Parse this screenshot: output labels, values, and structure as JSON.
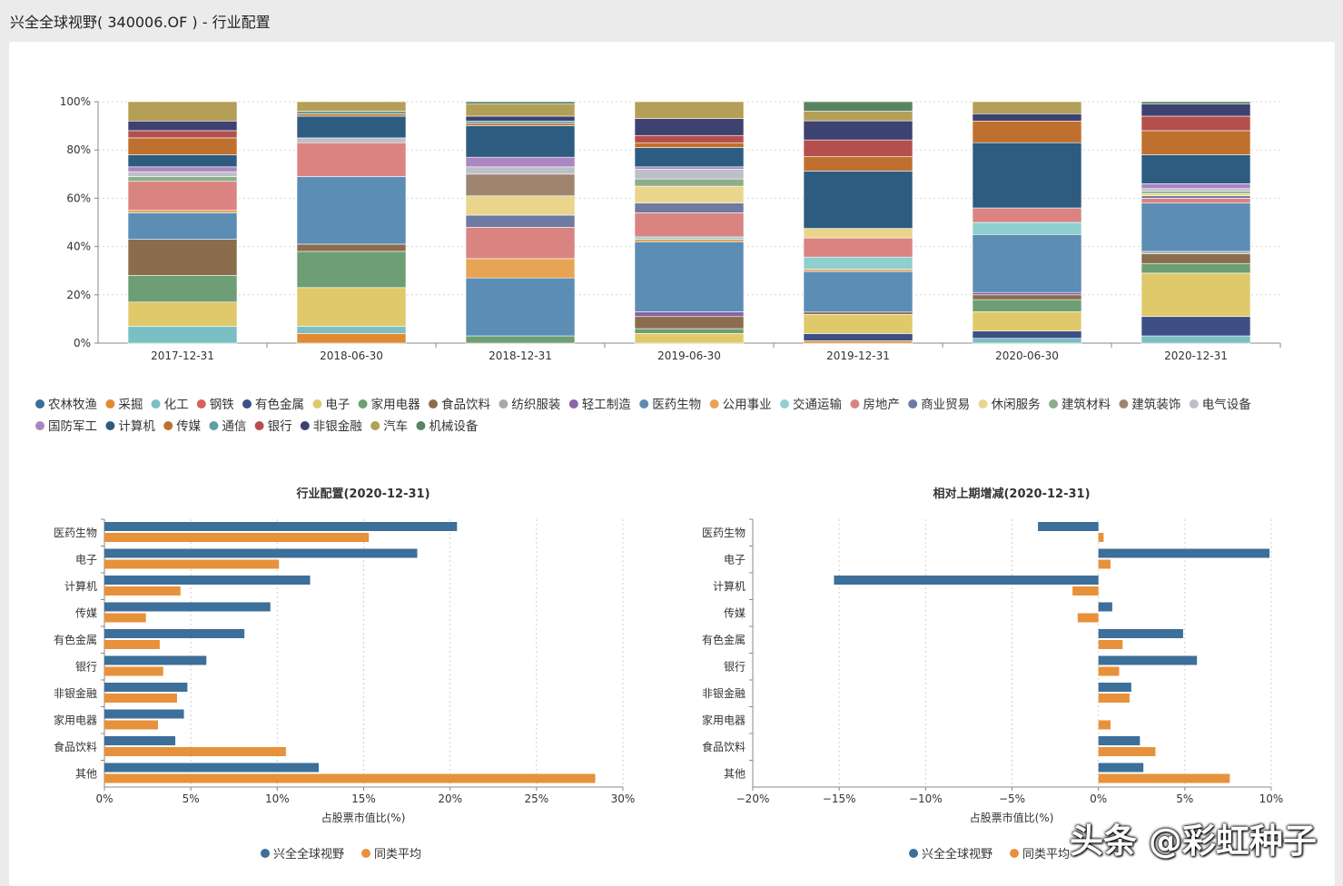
{
  "page": {
    "title": "兴全全球视野( 340006.OF ) - 行业配置",
    "watermark": "头条 @彩虹种子"
  },
  "colors": {
    "fund": "#3c6f99",
    "peer": "#e8913b",
    "industries": [
      "#3a6f98",
      "#e28a32",
      "#79bfc3",
      "#d9605e",
      "#3d4f86",
      "#e0c96b",
      "#6e9e73",
      "#8a6d4d",
      "#a5a9ae",
      "#8a63a8",
      "#5b8db5",
      "#e8a455",
      "#8fcfd0",
      "#d98481",
      "#6e7aa3",
      "#e9d58c",
      "#8cae89",
      "#9f8570",
      "#bcbfc8",
      "#ab86c2",
      "#2d5c80",
      "#c0702e",
      "#5e9ea3",
      "#b54f4d",
      "#3d4270",
      "#b39f56",
      "#5a8362"
    ]
  },
  "chart_data": [
    {
      "type": "stacked-bar",
      "title": "",
      "categories": [
        "2017-12-31",
        "2018-06-30",
        "2018-12-31",
        "2019-06-30",
        "2019-12-31",
        "2020-06-30",
        "2020-12-31"
      ],
      "y_ticks": [
        "0%",
        "20%",
        "40%",
        "60%",
        "80%",
        "100%"
      ],
      "ylim": [
        0,
        100
      ],
      "legend": [
        "农林牧渔",
        "采掘",
        "化工",
        "钢铁",
        "有色金属",
        "电子",
        "家用电器",
        "食品饮料",
        "纺织服装",
        "轻工制造",
        "医药生物",
        "公用事业",
        "交通运输",
        "房地产",
        "商业贸易",
        "休闲服务",
        "建筑材料",
        "建筑装饰",
        "电气设备",
        "国防军工",
        "计算机",
        "传媒",
        "通信",
        "银行",
        "非银金融",
        "汽车",
        "机械设备"
      ],
      "series": [
        {
          "name": "农林牧渔",
          "values": [
            0,
            0,
            0,
            0,
            0,
            0,
            0
          ]
        },
        {
          "name": "采掘",
          "values": [
            0,
            4,
            0,
            0,
            1,
            0,
            0
          ]
        },
        {
          "name": "化工",
          "values": [
            7,
            3,
            0,
            0,
            0,
            2,
            3
          ]
        },
        {
          "name": "钢铁",
          "values": [
            0,
            0,
            0,
            0,
            0,
            0,
            0
          ]
        },
        {
          "name": "有色金属",
          "values": [
            0,
            0,
            0,
            0,
            3,
            3,
            8
          ]
        },
        {
          "name": "电子",
          "values": [
            10,
            16,
            0,
            4,
            8,
            8,
            18
          ]
        },
        {
          "name": "家用电器",
          "values": [
            11,
            15,
            3,
            2,
            0,
            5,
            4
          ]
        },
        {
          "name": "食品饮料",
          "values": [
            15,
            3,
            0,
            5,
            1,
            2,
            4
          ]
        },
        {
          "name": "纺织服装",
          "values": [
            0,
            0,
            0,
            0,
            0,
            0,
            1
          ]
        },
        {
          "name": "轻工制造",
          "values": [
            0,
            0,
            0,
            2,
            0,
            1,
            0
          ]
        },
        {
          "name": "医药生物",
          "values": [
            11,
            28,
            24,
            29,
            17,
            24,
            20
          ]
        },
        {
          "name": "公用事业",
          "values": [
            1,
            0,
            8,
            1,
            1,
            0,
            0
          ]
        },
        {
          "name": "交通运输",
          "values": [
            0,
            0,
            0,
            1,
            5,
            5,
            0
          ]
        },
        {
          "name": "房地产",
          "values": [
            12,
            14,
            13,
            10,
            8,
            6,
            2
          ]
        },
        {
          "name": "商业贸易",
          "values": [
            0,
            0,
            5,
            4,
            0,
            0,
            1
          ]
        },
        {
          "name": "休闲服务",
          "values": [
            0,
            0,
            8,
            7,
            4,
            0,
            1
          ]
        },
        {
          "name": "建筑材料",
          "values": [
            2,
            0,
            0,
            3,
            0,
            0,
            1
          ]
        },
        {
          "name": "建筑装饰",
          "values": [
            0,
            0,
            9,
            0,
            0,
            0,
            0
          ]
        },
        {
          "name": "电气设备",
          "values": [
            2,
            2,
            3,
            4,
            0,
            0,
            1
          ]
        },
        {
          "name": "国防军工",
          "values": [
            2,
            0,
            4,
            1,
            0,
            0,
            2
          ]
        },
        {
          "name": "计算机",
          "values": [
            5,
            9,
            13,
            8,
            24,
            27,
            12
          ]
        },
        {
          "name": "传媒",
          "values": [
            7,
            1,
            1,
            2,
            6,
            9,
            10
          ]
        },
        {
          "name": "通信",
          "values": [
            0,
            1,
            1,
            0,
            0,
            0,
            0
          ]
        },
        {
          "name": "银行",
          "values": [
            3,
            0,
            0,
            3,
            7,
            0,
            6
          ]
        },
        {
          "name": "非银金融",
          "values": [
            4,
            0,
            2,
            7,
            8,
            3,
            5
          ]
        },
        {
          "name": "汽车",
          "values": [
            8,
            4,
            5,
            7,
            4,
            5,
            0
          ]
        },
        {
          "name": "机械设备",
          "values": [
            0,
            0,
            1,
            0,
            4,
            0,
            1
          ]
        }
      ]
    },
    {
      "type": "bar-horizontal",
      "title": "行业配置(2020-12-31)",
      "categories": [
        "医药生物",
        "电子",
        "计算机",
        "传媒",
        "有色金属",
        "银行",
        "非银金融",
        "家用电器",
        "食品饮料",
        "其他"
      ],
      "series": [
        {
          "name": "兴全全球视野",
          "values": [
            20.4,
            18.1,
            11.9,
            9.6,
            8.1,
            5.9,
            4.8,
            4.6,
            4.1,
            12.4
          ]
        },
        {
          "name": "同类平均",
          "values": [
            15.3,
            10.1,
            4.4,
            2.4,
            3.2,
            3.4,
            4.2,
            3.1,
            10.5,
            28.4
          ]
        }
      ],
      "xlabel": "占股票市值比(%)",
      "x_ticks": [
        "0%",
        "5%",
        "10%",
        "15%",
        "20%",
        "25%",
        "30%"
      ],
      "xlim": [
        0,
        30
      ]
    },
    {
      "type": "bar-horizontal",
      "title": "相对上期增减(2020-12-31)",
      "categories": [
        "医药生物",
        "电子",
        "计算机",
        "传媒",
        "有色金属",
        "银行",
        "非银金融",
        "家用电器",
        "食品饮料",
        "其他"
      ],
      "series": [
        {
          "name": "兴全全球视野",
          "values": [
            -3.5,
            9.9,
            -15.3,
            0.8,
            4.9,
            5.7,
            1.9,
            0,
            2.4,
            2.6
          ]
        },
        {
          "name": "同类平均",
          "values": [
            0.3,
            0.7,
            -1.5,
            -1.2,
            1.4,
            1.2,
            1.8,
            0.7,
            3.3,
            7.6
          ]
        }
      ],
      "xlabel": "占股票市值比(%)",
      "x_ticks": [
        "−20%",
        "−15%",
        "−10%",
        "−5%",
        "0%",
        "5%",
        "10%"
      ],
      "xlim": [
        -20,
        10
      ]
    }
  ]
}
